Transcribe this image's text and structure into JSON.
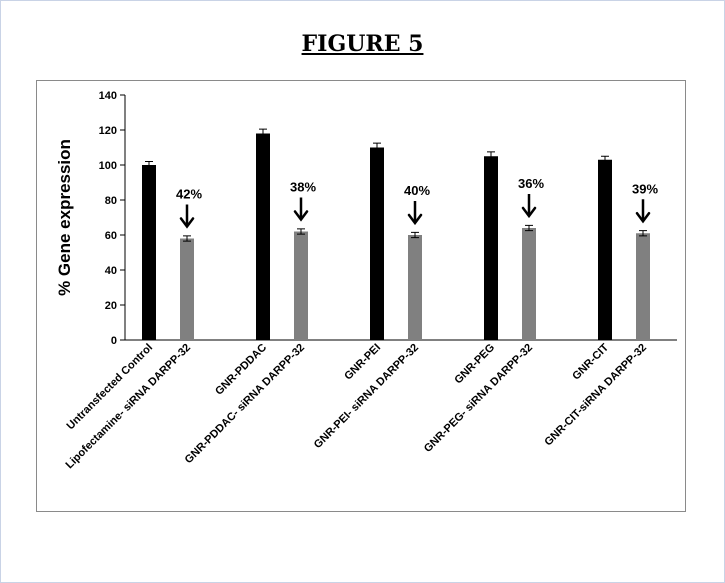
{
  "figure": {
    "title": "FIGURE 5"
  },
  "chart_data": {
    "type": "bar",
    "title": "",
    "xlabel": "",
    "ylabel": "% Gene expression",
    "ylim": [
      0,
      140
    ],
    "yticks": [
      0,
      20,
      40,
      60,
      80,
      100,
      120,
      140
    ],
    "grid": false,
    "legend": "none",
    "categories": [
      "Untransfected Control",
      "Lipofectamine- siRNA DARPP-32",
      "GNR-PDDAC",
      "GNR-PDDAC- siRNA DARPP-32",
      "GNR-PEI",
      "GNR-PEI- siRNA DARPP-32",
      "GNR-PEG",
      "GNR-PEG- siRNA DARPP-32",
      "GNR-CIT",
      "GNR-CIT-siRNA DARPP-32"
    ],
    "values": [
      100,
      58,
      118,
      62,
      110,
      60,
      105,
      64,
      103,
      61
    ],
    "errors": [
      2,
      1.5,
      2.5,
      1.5,
      2.5,
      1.5,
      2.5,
      1.5,
      2,
      1.5
    ],
    "bar_colors": [
      "#000000",
      "#808080",
      "#000000",
      "#808080",
      "#000000",
      "#808080",
      "#000000",
      "#808080",
      "#000000",
      "#808080"
    ],
    "annotations": [
      {
        "category_index": 1,
        "text": "42%"
      },
      {
        "category_index": 3,
        "text": "38%"
      },
      {
        "category_index": 5,
        "text": "40%"
      },
      {
        "category_index": 7,
        "text": "36%"
      },
      {
        "category_index": 9,
        "text": "39%"
      }
    ]
  }
}
